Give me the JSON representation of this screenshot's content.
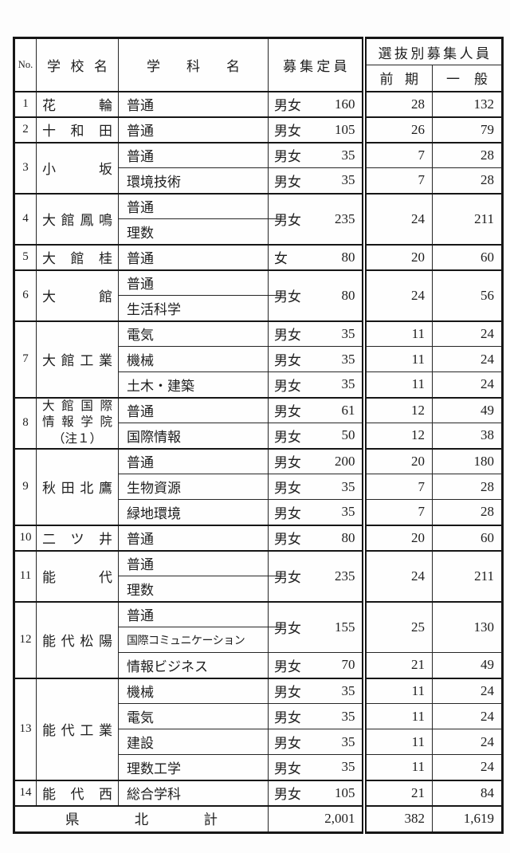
{
  "table": {
    "header": {
      "no": "No.",
      "school": "学校名",
      "dept": "学科名",
      "capacity": "募集定員",
      "selection_group": "選抜別募集人員",
      "first_term": "前期",
      "general": "一般"
    },
    "schools": [
      {
        "no": "1",
        "name": "花輪",
        "rows": [
          {
            "dept": "普通",
            "gender": "男女",
            "capacity": "160",
            "first": "28",
            "general": "132"
          }
        ]
      },
      {
        "no": "2",
        "name": "十和田",
        "rows": [
          {
            "dept": "普通",
            "gender": "男女",
            "capacity": "105",
            "first": "26",
            "general": "79"
          }
        ]
      },
      {
        "no": "3",
        "name": "小坂",
        "rows": [
          {
            "dept": "普通",
            "gender": "男女",
            "capacity": "35",
            "first": "7",
            "general": "28"
          },
          {
            "dept": "環境技術",
            "gender": "男女",
            "capacity": "35",
            "first": "7",
            "general": "28"
          }
        ]
      },
      {
        "no": "4",
        "name": "大館鳳鳴",
        "rows": [
          {
            "dept": "普通",
            "gender": "男女",
            "capacity": "235",
            "first": "24",
            "general": "211",
            "span": 2
          },
          {
            "dept": "理数"
          }
        ]
      },
      {
        "no": "5",
        "name": "大館桂",
        "rows": [
          {
            "dept": "普通",
            "gender": "女",
            "capacity": "80",
            "first": "20",
            "general": "60"
          }
        ]
      },
      {
        "no": "6",
        "name": "大館",
        "rows": [
          {
            "dept": "普通",
            "gender": "男女",
            "capacity": "80",
            "first": "24",
            "general": "56",
            "span": 2
          },
          {
            "dept": "生活科学"
          }
        ]
      },
      {
        "no": "7",
        "name": "大館工業",
        "rows": [
          {
            "dept": "電気",
            "gender": "男女",
            "capacity": "35",
            "first": "11",
            "general": "24"
          },
          {
            "dept": "機械",
            "gender": "男女",
            "capacity": "35",
            "first": "11",
            "general": "24"
          },
          {
            "dept": "土木・建築",
            "gender": "男女",
            "capacity": "35",
            "first": "11",
            "general": "24"
          }
        ]
      },
      {
        "no": "8",
        "name": "大館国際情報学院（注１）",
        "name_lines": [
          "大館国際",
          "情報学院",
          "（注１）"
        ],
        "rows": [
          {
            "dept": "普通",
            "gender": "男女",
            "capacity": "61",
            "first": "12",
            "general": "49"
          },
          {
            "dept": "国際情報",
            "gender": "男女",
            "capacity": "50",
            "first": "12",
            "general": "38"
          }
        ]
      },
      {
        "no": "9",
        "name": "秋田北鷹",
        "rows": [
          {
            "dept": "普通",
            "gender": "男女",
            "capacity": "200",
            "first": "20",
            "general": "180"
          },
          {
            "dept": "生物資源",
            "gender": "男女",
            "capacity": "35",
            "first": "7",
            "general": "28"
          },
          {
            "dept": "緑地環境",
            "gender": "男女",
            "capacity": "35",
            "first": "7",
            "general": "28"
          }
        ]
      },
      {
        "no": "10",
        "name": "二ツ井",
        "rows": [
          {
            "dept": "普通",
            "gender": "男女",
            "capacity": "80",
            "first": "20",
            "general": "60"
          }
        ]
      },
      {
        "no": "11",
        "name": "能代",
        "rows": [
          {
            "dept": "普通",
            "gender": "男女",
            "capacity": "235",
            "first": "24",
            "general": "211",
            "span": 2
          },
          {
            "dept": "理数"
          }
        ]
      },
      {
        "no": "12",
        "name": "能代松陽",
        "rows": [
          {
            "dept": "普通",
            "gender": "男女",
            "capacity": "155",
            "first": "25",
            "general": "130",
            "span": 2
          },
          {
            "dept": "国際コミュニケーション"
          },
          {
            "dept": "情報ビジネス",
            "gender": "男女",
            "capacity": "70",
            "first": "21",
            "general": "49"
          }
        ]
      },
      {
        "no": "13",
        "name": "能代工業",
        "rows": [
          {
            "dept": "機械",
            "gender": "男女",
            "capacity": "35",
            "first": "11",
            "general": "24"
          },
          {
            "dept": "電気",
            "gender": "男女",
            "capacity": "35",
            "first": "11",
            "general": "24"
          },
          {
            "dept": "建設",
            "gender": "男女",
            "capacity": "35",
            "first": "11",
            "general": "24"
          },
          {
            "dept": "理数工学",
            "gender": "男女",
            "capacity": "35",
            "first": "11",
            "general": "24"
          }
        ]
      },
      {
        "no": "14",
        "name": "能代西",
        "rows": [
          {
            "dept": "総合学科",
            "gender": "男女",
            "capacity": "105",
            "first": "21",
            "general": "84"
          }
        ]
      }
    ],
    "footer": {
      "label": "県北計",
      "capacity": "2,001",
      "first": "382",
      "general": "1,619"
    }
  }
}
